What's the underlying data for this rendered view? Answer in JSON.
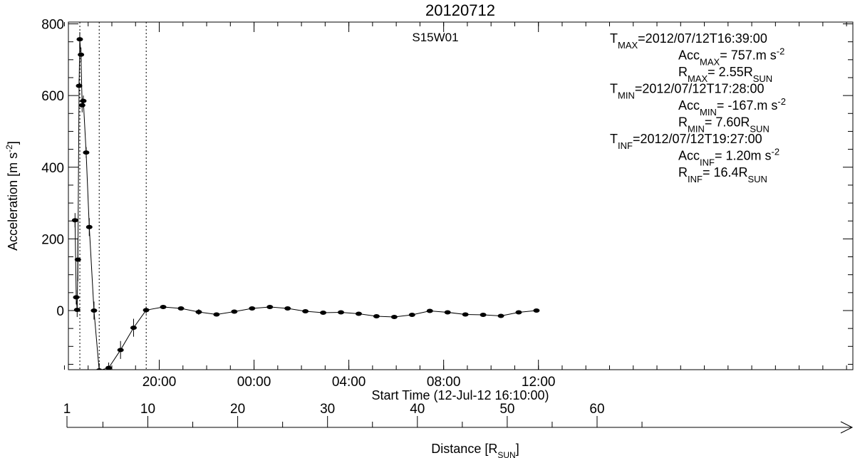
{
  "chart_data": {
    "type": "line",
    "title": "20120712",
    "region_label": "S15W01",
    "xlabel": "Start Time (12-Jul-12 16:10:00)",
    "ylabel": "Acceleration [m s",
    "ylabel_sup": "-2",
    "ylabel_close": "]",
    "ylim": [
      -165,
      805
    ],
    "y_ticks": [
      {
        "value": 0,
        "label": "0"
      },
      {
        "value": 200,
        "label": "200"
      },
      {
        "value": 400,
        "label": "400"
      },
      {
        "value": 600,
        "label": "600"
      },
      {
        "value": 800,
        "label": "800"
      }
    ],
    "x_range_hours": [
      0,
      33.1
    ],
    "x_ticks": [
      {
        "value": 3.833,
        "label": "20:00"
      },
      {
        "value": 7.833,
        "label": "00:00"
      },
      {
        "value": 11.833,
        "label": "04:00"
      },
      {
        "value": 15.833,
        "label": "08:00"
      },
      {
        "value": 19.833,
        "label": "12:00"
      }
    ],
    "x_minor_step_hours": 1,
    "vlines_hours": [
      0.483,
      1.3,
      3.283
    ],
    "points": [
      {
        "x": 0.28,
        "y": 252,
        "err": 20
      },
      {
        "x": 0.33,
        "y": 37,
        "err": 20
      },
      {
        "x": 0.37,
        "y": 2,
        "err": 20
      },
      {
        "x": 0.4,
        "y": 142,
        "err": 60
      },
      {
        "x": 0.45,
        "y": 627,
        "err": 20
      },
      {
        "x": 0.48,
        "y": 757,
        "err": 20
      },
      {
        "x": 0.53,
        "y": 714,
        "err": 20
      },
      {
        "x": 0.58,
        "y": 573,
        "err": 20
      },
      {
        "x": 0.63,
        "y": 585,
        "err": 15
      },
      {
        "x": 0.75,
        "y": 441,
        "err": 15
      },
      {
        "x": 0.88,
        "y": 233,
        "err": 25
      },
      {
        "x": 1.08,
        "y": 0,
        "err": 25
      },
      {
        "x": 1.3,
        "y": -167,
        "err": 20
      },
      {
        "x": 1.7,
        "y": -160,
        "err": 15
      },
      {
        "x": 2.2,
        "y": -110,
        "err": 25
      },
      {
        "x": 2.75,
        "y": -48,
        "err": 25
      },
      {
        "x": 3.28,
        "y": 1.2,
        "err": 10
      },
      {
        "x": 4.0,
        "y": 10,
        "err": 5
      },
      {
        "x": 4.75,
        "y": 6,
        "err": 5
      },
      {
        "x": 5.5,
        "y": -4,
        "err": 8
      },
      {
        "x": 6.25,
        "y": -11,
        "err": 5
      },
      {
        "x": 7.0,
        "y": -3,
        "err": 5
      },
      {
        "x": 7.75,
        "y": 6,
        "err": 5
      },
      {
        "x": 8.5,
        "y": 10,
        "err": 5
      },
      {
        "x": 9.25,
        "y": 6,
        "err": 5
      },
      {
        "x": 10.0,
        "y": -2,
        "err": 5
      },
      {
        "x": 10.75,
        "y": -6,
        "err": 5
      },
      {
        "x": 11.5,
        "y": -5,
        "err": 5
      },
      {
        "x": 12.25,
        "y": -9,
        "err": 5
      },
      {
        "x": 13.0,
        "y": -16,
        "err": 5
      },
      {
        "x": 13.75,
        "y": -18,
        "err": 5
      },
      {
        "x": 14.5,
        "y": -12,
        "err": 5
      },
      {
        "x": 15.25,
        "y": -1,
        "err": 5
      },
      {
        "x": 16.0,
        "y": -5,
        "err": 5
      },
      {
        "x": 16.75,
        "y": -11,
        "err": 5
      },
      {
        "x": 17.5,
        "y": -12,
        "err": 5
      },
      {
        "x": 18.25,
        "y": -15,
        "err": 5
      },
      {
        "x": 19.0,
        "y": -5,
        "err": 5
      },
      {
        "x": 19.75,
        "y": 0,
        "err": 5
      }
    ],
    "grid": false,
    "distance_axis": {
      "label": "Distance [R",
      "label_sub": "SUN",
      "label_close": "]",
      "ticks": [
        {
          "value": 1,
          "label": "1"
        },
        {
          "value": 10,
          "label": "10"
        },
        {
          "value": 20,
          "label": "20"
        },
        {
          "value": 30,
          "label": "30"
        },
        {
          "value": 40,
          "label": "40"
        },
        {
          "value": 50,
          "label": "50"
        },
        {
          "value": 60,
          "label": "60"
        }
      ]
    },
    "annotations": [
      {
        "indent": 0,
        "lines": [
          {
            "t": "T"
          },
          {
            "t": "MAX",
            "sub": true
          },
          {
            "t": "=2012/07/12T16:39:00"
          }
        ]
      },
      {
        "indent": 1,
        "lines": [
          {
            "t": "Acc"
          },
          {
            "t": "MAX",
            "sub": true
          },
          {
            "t": "=  757.m s"
          },
          {
            "t": "-2",
            "sup": true
          }
        ]
      },
      {
        "indent": 1,
        "lines": [
          {
            "t": "R"
          },
          {
            "t": "MAX",
            "sub": true
          },
          {
            "t": "=  2.55R"
          },
          {
            "t": "SUN",
            "sub": true
          }
        ]
      },
      {
        "indent": 0,
        "lines": [
          {
            "t": "T"
          },
          {
            "t": "MIN",
            "sub": true
          },
          {
            "t": "=2012/07/12T17:28:00"
          }
        ]
      },
      {
        "indent": 1,
        "lines": [
          {
            "t": "Acc"
          },
          {
            "t": "MIN",
            "sub": true
          },
          {
            "t": "= -167.m s"
          },
          {
            "t": "-2",
            "sup": true
          }
        ]
      },
      {
        "indent": 1,
        "lines": [
          {
            "t": "R"
          },
          {
            "t": "MIN",
            "sub": true
          },
          {
            "t": "=  7.60R"
          },
          {
            "t": "SUN",
            "sub": true
          }
        ]
      },
      {
        "indent": 0,
        "lines": [
          {
            "t": "T"
          },
          {
            "t": "INF",
            "sub": true
          },
          {
            "t": "=2012/07/12T19:27:00"
          }
        ]
      },
      {
        "indent": 1,
        "lines": [
          {
            "t": "Acc"
          },
          {
            "t": "INF",
            "sub": true
          },
          {
            "t": "=  1.20m s"
          },
          {
            "t": "-2",
            "sup": true
          }
        ]
      },
      {
        "indent": 1,
        "lines": [
          {
            "t": "R"
          },
          {
            "t": "INF",
            "sub": true
          },
          {
            "t": "=  16.4R"
          },
          {
            "t": "SUN",
            "sub": true
          }
        ]
      }
    ]
  }
}
